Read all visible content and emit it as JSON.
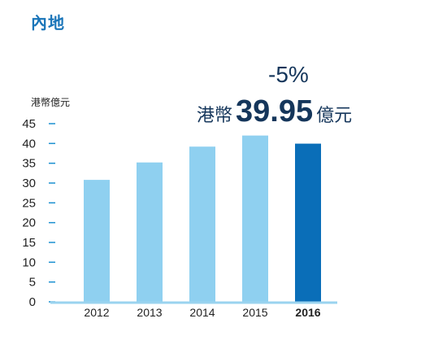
{
  "title": "內地",
  "headline": {
    "change": "-5%",
    "currency": "港幣",
    "value": "39.95",
    "unit": "億元"
  },
  "colors": {
    "title": "#1a75b9",
    "bar": "#8fd0f0",
    "highlight": "#0a6eb8",
    "axis": "#9ad3ef",
    "tick": "#1a90d0",
    "text": "#15365b"
  },
  "chart_data": {
    "type": "bar",
    "ylabel": "港幣億元",
    "ylim": [
      0,
      45
    ],
    "yticks": [
      0,
      5,
      10,
      15,
      20,
      25,
      30,
      35,
      40,
      45
    ],
    "categories": [
      "2012",
      "2013",
      "2014",
      "2015",
      "2016"
    ],
    "values": [
      30.8,
      35.2,
      39.2,
      42.0,
      39.95
    ],
    "highlight_index": 4,
    "grid": false
  }
}
